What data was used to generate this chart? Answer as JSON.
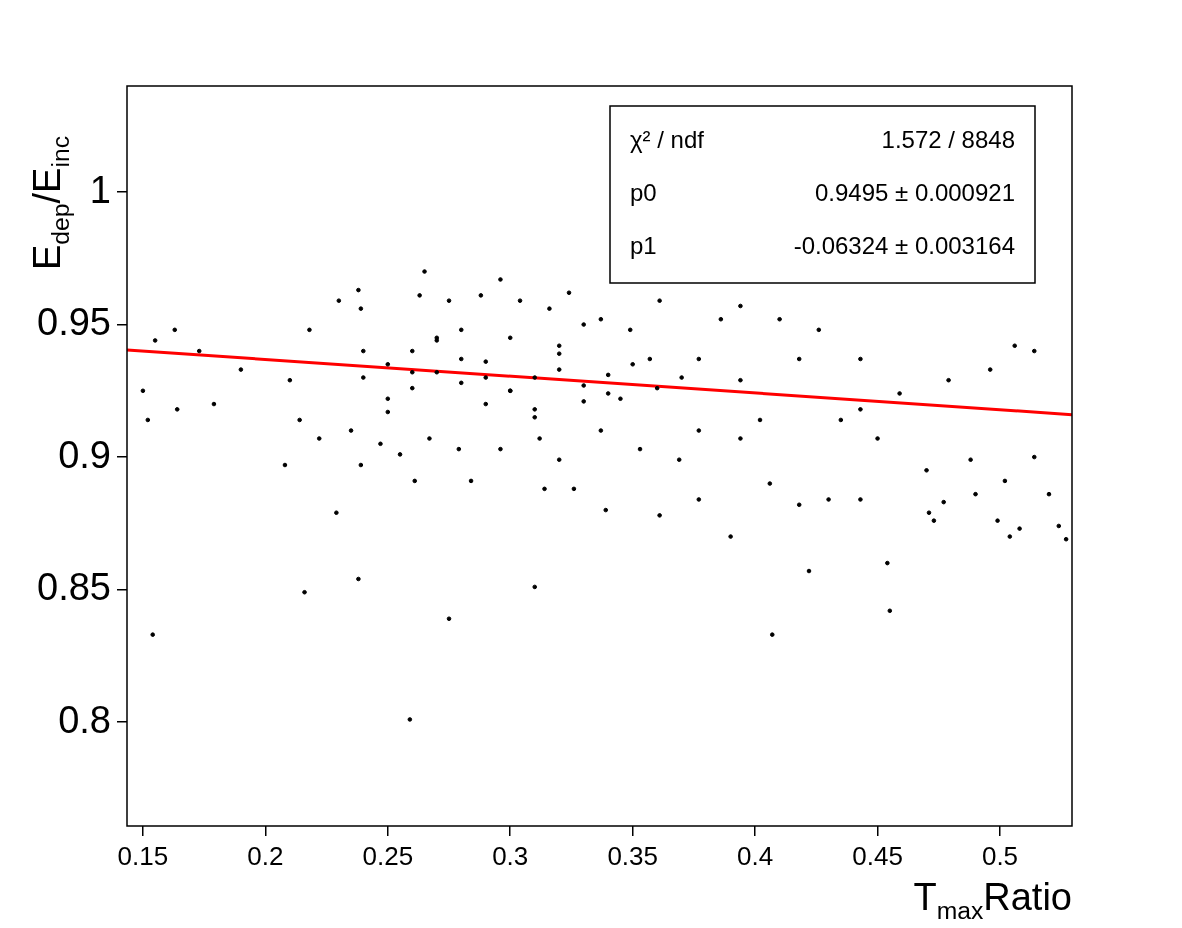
{
  "chart_data": {
    "type": "scatter",
    "xlabel": "T$_{max}$Ratio",
    "ylabel": "E$_{dep}$/E$_{inc}$",
    "xlim": [
      0.1435,
      0.5294
    ],
    "ylim": [
      0.7608,
      1.04
    ],
    "xticks": [
      0.15,
      0.2,
      0.25,
      0.3,
      0.35,
      0.4,
      0.45,
      0.5
    ],
    "yticks": [
      0.8,
      0.85,
      0.9,
      0.95,
      1
    ],
    "grid": false,
    "legend": false,
    "annotations": [
      "χ² / ndf",
      "1.572 / 8848",
      "p0",
      "0.9495 ± 0.000921",
      "p1",
      "-0.06324 ± 0.003164"
    ],
    "series": [
      {
        "color": "#000000",
        "x": [
          0.154,
          0.216,
          0.238,
          0.275,
          0.259,
          0.229,
          0.31,
          0.407,
          0.455,
          0.454,
          0.422,
          0.39,
          0.504,
          0.508,
          0.499,
          0.524,
          0.527,
          0.473,
          0.471,
          0.477,
          0.488,
          0.47,
          0.514,
          0.52,
          0.502,
          0.49,
          0.443,
          0.43,
          0.418,
          0.406,
          0.377,
          0.361,
          0.339,
          0.326,
          0.314,
          0.284,
          0.261,
          0.239,
          0.208,
          0.164,
          0.152,
          0.15,
          0.155,
          0.163,
          0.173,
          0.179,
          0.19,
          0.265,
          0.296,
          0.238,
          0.324,
          0.394,
          0.386,
          0.361,
          0.506,
          0.514,
          0.496,
          0.479,
          0.459,
          0.443,
          0.426,
          0.41,
          0.418,
          0.435,
          0.45,
          0.443,
          0.402,
          0.394,
          0.377,
          0.369,
          0.353,
          0.345,
          0.337,
          0.32,
          0.312,
          0.296,
          0.279,
          0.267,
          0.255,
          0.247,
          0.235,
          0.222,
          0.214,
          0.21,
          0.218,
          0.23,
          0.239,
          0.263,
          0.275,
          0.288,
          0.304,
          0.316,
          0.337,
          0.349,
          0.357,
          0.377,
          0.394,
          0.24,
          0.25,
          0.26,
          0.27,
          0.28,
          0.29,
          0.3,
          0.31,
          0.32,
          0.33,
          0.34,
          0.24,
          0.25,
          0.26,
          0.27,
          0.28,
          0.29,
          0.3,
          0.31,
          0.32,
          0.33,
          0.34,
          0.25,
          0.27,
          0.29,
          0.31,
          0.33,
          0.26,
          0.28,
          0.3,
          0.32,
          0.35,
          0.36,
          0.37
        ],
        "values": [
          0.833,
          0.849,
          0.854,
          0.839,
          0.801,
          0.879,
          0.851,
          0.833,
          0.842,
          0.86,
          0.857,
          0.87,
          0.87,
          0.873,
          0.876,
          0.874,
          0.869,
          0.876,
          0.879,
          0.883,
          0.899,
          0.895,
          0.9,
          0.886,
          0.891,
          0.886,
          0.884,
          0.884,
          0.882,
          0.89,
          0.884,
          0.878,
          0.88,
          0.888,
          0.888,
          0.891,
          0.891,
          0.897,
          0.897,
          0.918,
          0.914,
          0.925,
          0.944,
          0.948,
          0.94,
          0.92,
          0.933,
          0.97,
          0.967,
          0.963,
          0.962,
          0.957,
          0.952,
          0.959,
          0.942,
          0.94,
          0.933,
          0.929,
          0.924,
          0.937,
          0.948,
          0.952,
          0.937,
          0.914,
          0.907,
          0.918,
          0.914,
          0.907,
          0.91,
          0.899,
          0.903,
          0.922,
          0.91,
          0.899,
          0.907,
          0.903,
          0.903,
          0.907,
          0.901,
          0.905,
          0.91,
          0.907,
          0.914,
          0.929,
          0.948,
          0.959,
          0.956,
          0.961,
          0.959,
          0.961,
          0.959,
          0.956,
          0.952,
          0.948,
          0.937,
          0.937,
          0.929,
          0.93,
          0.935,
          0.94,
          0.932,
          0.928,
          0.936,
          0.925,
          0.93,
          0.933,
          0.927,
          0.931,
          0.94,
          0.922,
          0.926,
          0.944,
          0.937,
          0.92,
          0.945,
          0.918,
          0.939,
          0.921,
          0.924,
          0.917,
          0.945,
          0.93,
          0.915,
          0.95,
          0.932,
          0.948,
          0.925,
          0.942,
          0.935,
          0.926,
          0.93
        ]
      },
      {
        "type": "line",
        "color": "#ff0000",
        "x": [
          0.1435,
          0.5294
        ],
        "values": [
          0.9404,
          0.916
        ]
      }
    ]
  }
}
